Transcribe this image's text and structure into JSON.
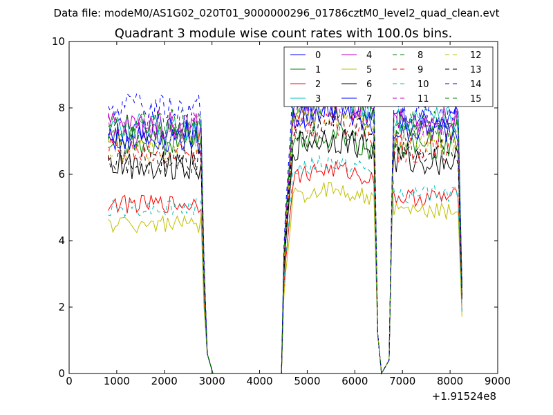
{
  "chart_data": {
    "type": "line",
    "suptitle": "Data file: modeM0/AS1G02_020T01_9000000296_01786cztM0_level2_quad_clean.evt",
    "title": "Quadrant 3 module wise count rates with 100.0s bins.",
    "xlabel": "",
    "ylabel": "",
    "x_offset_label": "+1.91524e8",
    "xlim": [
      0,
      9000
    ],
    "ylim": [
      0,
      10
    ],
    "xticks": [
      "0",
      "1000",
      "2000",
      "3000",
      "4000",
      "5000",
      "6000",
      "7000",
      "8000",
      "9000"
    ],
    "yticks": [
      "0",
      "2",
      "4",
      "6",
      "8",
      "10"
    ],
    "legend_position": "top-right",
    "segments": [
      [
        820,
        2780
      ],
      [
        4550,
        6420
      ],
      [
        6820,
        8180
      ]
    ],
    "drops": [
      [
        2780,
        2830
      ],
      [
        2830,
        2900
      ],
      [
        2900,
        3020
      ],
      [
        4380,
        4460
      ],
      [
        4460,
        4550
      ],
      [
        6420,
        6480
      ],
      [
        6480,
        6560
      ],
      [
        6560,
        6720
      ],
      [
        6720,
        6820
      ],
      [
        8180,
        8250
      ]
    ],
    "series": [
      {
        "name": "0",
        "color": "#0000ff",
        "dash": "solid",
        "levels": [
          7.3,
          7.4,
          7.6
        ]
      },
      {
        "name": "1",
        "color": "#008000",
        "dash": "solid",
        "levels": [
          7.0,
          6.7,
          6.9
        ]
      },
      {
        "name": "2",
        "color": "#ff0000",
        "dash": "solid",
        "levels": [
          5.1,
          5.7,
          5.3
        ]
      },
      {
        "name": "3",
        "color": "#00bfbf",
        "dash": "solid",
        "levels": [
          7.4,
          7.9,
          7.6
        ]
      },
      {
        "name": "4",
        "color": "#bf00bf",
        "dash": "solid",
        "levels": [
          7.5,
          7.8,
          7.6
        ]
      },
      {
        "name": "5",
        "color": "#bfbf00",
        "dash": "solid",
        "levels": [
          4.5,
          5.1,
          4.9
        ]
      },
      {
        "name": "6",
        "color": "#000000",
        "dash": "solid",
        "levels": [
          6.3,
          6.6,
          6.4
        ]
      },
      {
        "name": "7",
        "color": "#0000ff",
        "dash": "solid",
        "levels": [
          7.1,
          7.5,
          7.3
        ]
      },
      {
        "name": "8",
        "color": "#008000",
        "dash": "dashed",
        "levels": [
          7.2,
          7.7,
          7.4
        ]
      },
      {
        "name": "9",
        "color": "#ff0000",
        "dash": "dashed",
        "levels": [
          6.7,
          7.1,
          6.8
        ]
      },
      {
        "name": "10",
        "color": "#00bfbf",
        "dash": "dashed",
        "levels": [
          5.0,
          5.9,
          5.4
        ]
      },
      {
        "name": "11",
        "color": "#bf00bf",
        "dash": "dashed",
        "levels": [
          7.4,
          7.7,
          7.3
        ]
      },
      {
        "name": "12",
        "color": "#bfbf00",
        "dash": "dashed",
        "levels": [
          6.8,
          7.4,
          7.0
        ]
      },
      {
        "name": "13",
        "color": "#000000",
        "dash": "dashed",
        "levels": [
          6.4,
          7.1,
          6.7
        ]
      },
      {
        "name": "14",
        "color": "#0000ff",
        "dash": "dashed",
        "levels": [
          8.0,
          8.4,
          7.8
        ]
      },
      {
        "name": "15",
        "color": "#008000",
        "dash": "dashed",
        "levels": [
          7.5,
          7.9,
          7.6
        ]
      }
    ]
  }
}
